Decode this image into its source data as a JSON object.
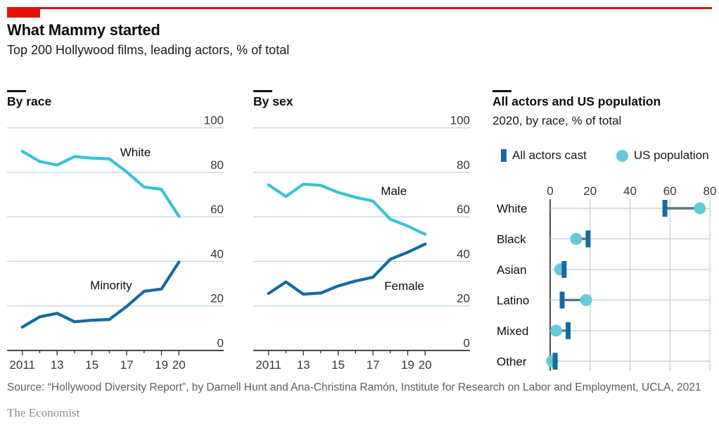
{
  "header": {
    "title": "What Mammy started",
    "subtitle": "Top 200 Hollywood films, leading actors, % of total"
  },
  "source_line": "Source: “Hollywood Diversity Report”, by Darnell Hunt and Ana-Christina Ramón, Institute for Research on Labor and Employment, UCLA, 2021",
  "brand": "The Economist",
  "colors": {
    "red": "#E3120B",
    "teal": "#38C3D4",
    "teal_light": "#66C9D9",
    "blue": "#17699F",
    "grid": "#C2D6DF",
    "axis": "#2B2B2B",
    "connector": "#5C7380",
    "text": "#0D0D0D",
    "muted": "#5E5E5E",
    "brand_gray": "#8E8E8E"
  },
  "chart_data": [
    {
      "id": "by-race",
      "type": "line",
      "title": "By race",
      "x": [
        2011,
        2012,
        2013,
        2014,
        2015,
        2016,
        2017,
        2018,
        2019,
        2020
      ],
      "x_ticks": [
        {
          "year": 2011,
          "label": "2011"
        },
        {
          "year": 2013,
          "label": "13"
        },
        {
          "year": 2015,
          "label": "15"
        },
        {
          "year": 2017,
          "label": "17"
        },
        {
          "year": 2019,
          "label": "19"
        },
        {
          "year": 2020,
          "label": "20"
        }
      ],
      "ylim": [
        0,
        100
      ],
      "yticks": [
        0,
        20,
        40,
        60,
        80,
        100
      ],
      "grid": "horizontal",
      "legend_position": "inline-labels",
      "series": [
        {
          "name": "White",
          "color": "#38C3D4",
          "values": [
            89.5,
            84.9,
            83.3,
            87.1,
            86.4,
            86.1,
            80.2,
            73.4,
            72.4,
            60.3
          ],
          "label_at": {
            "x": 2017.5,
            "y": 87.3
          }
        },
        {
          "name": "Minority",
          "color": "#17699F",
          "values": [
            10.5,
            15.1,
            16.7,
            12.9,
            13.6,
            13.9,
            19.8,
            26.6,
            27.6,
            39.7
          ],
          "label_at": {
            "x": 2016.1,
            "y": 27.5
          }
        }
      ]
    },
    {
      "id": "by-sex",
      "type": "line",
      "title": "By sex",
      "x": [
        2011,
        2012,
        2013,
        2014,
        2015,
        2016,
        2017,
        2018,
        2019,
        2020
      ],
      "x_ticks": [
        {
          "year": 2011,
          "label": "2011"
        },
        {
          "year": 2013,
          "label": "13"
        },
        {
          "year": 2015,
          "label": "15"
        },
        {
          "year": 2017,
          "label": "17"
        },
        {
          "year": 2019,
          "label": "19"
        },
        {
          "year": 2020,
          "label": "20"
        }
      ],
      "ylim": [
        0,
        100
      ],
      "yticks": [
        0,
        20,
        40,
        60,
        80,
        100
      ],
      "grid": "horizontal",
      "legend_position": "inline-labels",
      "series": [
        {
          "name": "Male",
          "color": "#38C3D4",
          "values": [
            74.4,
            69.2,
            74.7,
            74.2,
            71.0,
            68.8,
            67.1,
            59.0,
            55.9,
            52.2
          ],
          "label_at": {
            "x": 2018.2,
            "y": 69.9
          }
        },
        {
          "name": "Female",
          "color": "#17699F",
          "values": [
            25.6,
            30.8,
            25.3,
            25.8,
            29.0,
            31.2,
            32.9,
            41.0,
            44.1,
            47.8
          ],
          "label_at": {
            "x": 2018.8,
            "y": 27.2
          }
        }
      ]
    },
    {
      "id": "actors-vs-population",
      "type": "dot",
      "title": "All actors and US population",
      "subtitle": "2020, by race, % of total",
      "legend": [
        {
          "label": "All actors cast",
          "marker": "bar",
          "color": "#17699F"
        },
        {
          "label": "US population",
          "marker": "circle",
          "color": "#66C9D9"
        }
      ],
      "legend_position": "top",
      "categories": [
        "White",
        "Black",
        "Asian",
        "Latino",
        "Mixed",
        "Other"
      ],
      "xlim": [
        0,
        80
      ],
      "xticks": [
        0,
        20,
        40,
        60,
        80
      ],
      "grid": "both",
      "series": [
        {
          "name": "All actors cast",
          "values": [
            57.5,
            19,
            7,
            6,
            9,
            2.5
          ]
        },
        {
          "name": "US population",
          "values": [
            75,
            13,
            5,
            18,
            3,
            1
          ]
        }
      ]
    }
  ]
}
